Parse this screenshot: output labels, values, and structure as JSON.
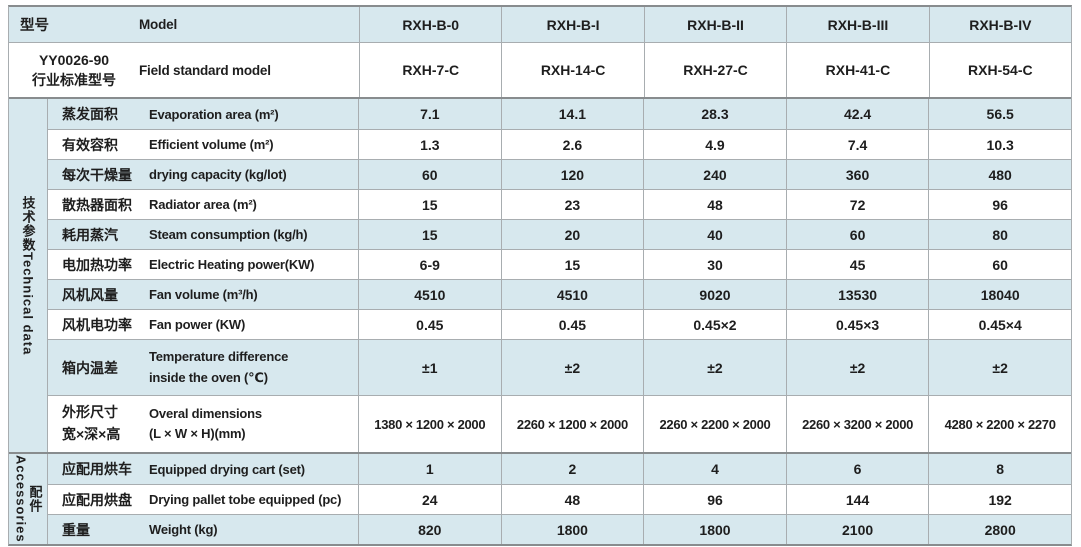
{
  "colors": {
    "row_blue": "#d7e8ee",
    "border_section": "#888c8e",
    "border_thin": "#a8adb0",
    "text": "#1e1e1e"
  },
  "header": {
    "model_row": {
      "cn": "型号",
      "en": "Model",
      "values": [
        "RXH-B-0",
        "RXH-B-I",
        "RXH-B-II",
        "RXH-B-III",
        "RXH-B-IV"
      ]
    },
    "standard_row": {
      "cn_line1": "YY0026-90",
      "cn_line2": "行业标准型号",
      "en": "Field standard model",
      "values": [
        "RXH-7-C",
        "RXH-14-C",
        "RXH-27-C",
        "RXH-41-C",
        "RXH-54-C"
      ]
    }
  },
  "tech_section": {
    "group_cn": "技术参数",
    "group_en": "Technical data",
    "rows": [
      {
        "cn": "蒸发面积",
        "en": "Evaporation area (m²)",
        "values": [
          "7.1",
          "14.1",
          "28.3",
          "42.4",
          "56.5"
        ]
      },
      {
        "cn": "有效容积",
        "en": "Efficient volume (m²)",
        "values": [
          "1.3",
          "2.6",
          "4.9",
          "7.4",
          "10.3"
        ]
      },
      {
        "cn": "每次干燥量",
        "en": "drying capacity (kg/lot)",
        "values": [
          "60",
          "120",
          "240",
          "360",
          "480"
        ]
      },
      {
        "cn": "散热器面积",
        "en": "Radiator area (m²)",
        "values": [
          "15",
          "23",
          "48",
          "72",
          "96"
        ]
      },
      {
        "cn": "耗用蒸汽",
        "en": "Steam consumption (kg/h)",
        "values": [
          "15",
          "20",
          "40",
          "60",
          "80"
        ]
      },
      {
        "cn": "电加热功率",
        "en": "Electric Heating power(KW)",
        "values": [
          "6-9",
          "15",
          "30",
          "45",
          "60"
        ]
      },
      {
        "cn": "风机风量",
        "en": "Fan volume (m³/h)",
        "values": [
          "4510",
          "4510",
          "9020",
          "13530",
          "18040"
        ]
      },
      {
        "cn": "风机电功率",
        "en": "Fan power (KW)",
        "values": [
          "0.45",
          "0.45",
          "0.45×2",
          "0.45×3",
          "0.45×4"
        ]
      },
      {
        "cn": "箱内温差",
        "en_line1": "Temperature difference",
        "en_line2": "inside the oven (℃)",
        "values": [
          "±1",
          "±2",
          "±2",
          "±2",
          "±2"
        ]
      },
      {
        "cn_line1": "外形尺寸",
        "cn_line2": "宽×深×高",
        "en_line1": "Overal dimensions",
        "en_line2": "(L × W × H)(mm)",
        "values": [
          "1380 × 1200 × 2000",
          "2260 × 1200 × 2000",
          "2260 × 2200 × 2000",
          "2260 × 3200 × 2000",
          "4280 × 2200 × 2270"
        ]
      }
    ]
  },
  "accessories_section": {
    "group_cn": "配件",
    "group_en": "Accessories",
    "rows": [
      {
        "cn": "应配用烘车",
        "en": "Equipped drying cart (set)",
        "values": [
          "1",
          "2",
          "4",
          "6",
          "8"
        ]
      },
      {
        "cn": "应配用烘盘",
        "en": "Drying pallet tobe equipped (pc)",
        "values": [
          "24",
          "48",
          "96",
          "144",
          "192"
        ]
      },
      {
        "cn": "重量",
        "en": "Weight (kg)",
        "values": [
          "820",
          "1800",
          "1800",
          "2100",
          "2800"
        ]
      }
    ]
  }
}
